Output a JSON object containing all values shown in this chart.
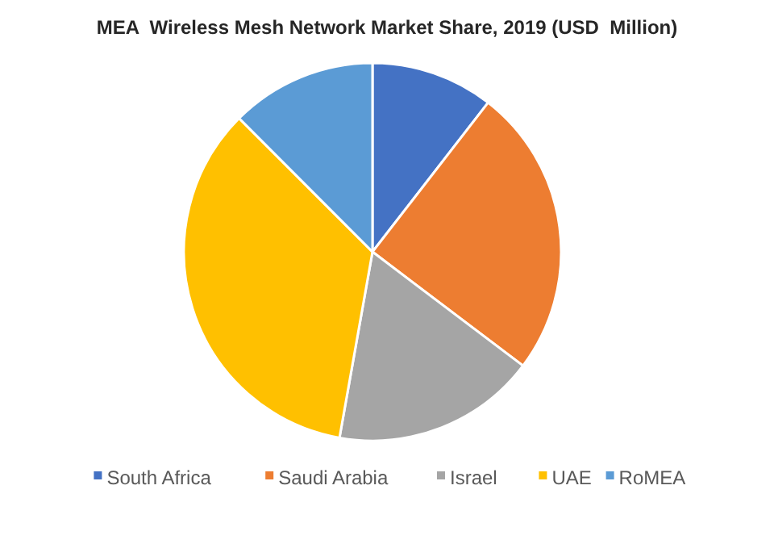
{
  "chart_data": {
    "type": "pie",
    "title": "MEA  Wireless Mesh Network Market Share, 2019 (USD  Million)",
    "categories": [
      "South Africa",
      "Saudi Arabia",
      "Israel",
      "UAE",
      "RoMEA"
    ],
    "values": [
      10.5,
      24.8,
      17.5,
      34.7,
      12.5
    ],
    "colors": [
      "#4472c4",
      "#ed7d31",
      "#a5a5a5",
      "#ffc000",
      "#5b9bd5"
    ],
    "legend": "bottom"
  }
}
